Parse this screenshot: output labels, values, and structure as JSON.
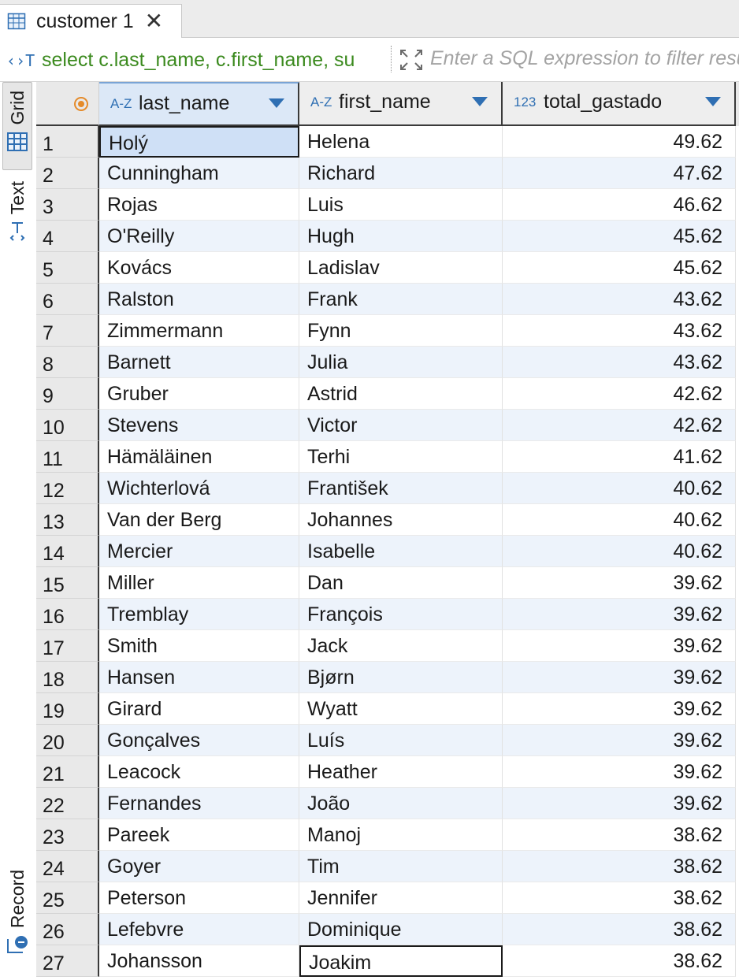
{
  "tab": {
    "title": "customer 1",
    "close": "✕"
  },
  "filter": {
    "sql": "select c.last_name, c.first_name, su",
    "placeholder": "Enter a SQL expression to filter results"
  },
  "sidebar": {
    "grid_label": "Grid",
    "text_label": "Text",
    "record_label": "Record"
  },
  "columns": [
    {
      "type": "A-Z",
      "label": "last_name"
    },
    {
      "type": "A-Z",
      "label": "first_name"
    },
    {
      "type": "123",
      "label": "total_gastado"
    }
  ],
  "rows": [
    {
      "n": "1",
      "last_name": "Holý",
      "first_name": "Helena",
      "total": "49.62"
    },
    {
      "n": "2",
      "last_name": "Cunningham",
      "first_name": "Richard",
      "total": "47.62"
    },
    {
      "n": "3",
      "last_name": "Rojas",
      "first_name": "Luis",
      "total": "46.62"
    },
    {
      "n": "4",
      "last_name": "O'Reilly",
      "first_name": "Hugh",
      "total": "45.62"
    },
    {
      "n": "5",
      "last_name": "Kovács",
      "first_name": "Ladislav",
      "total": "45.62"
    },
    {
      "n": "6",
      "last_name": "Ralston",
      "first_name": "Frank",
      "total": "43.62"
    },
    {
      "n": "7",
      "last_name": "Zimmermann",
      "first_name": "Fynn",
      "total": "43.62"
    },
    {
      "n": "8",
      "last_name": "Barnett",
      "first_name": "Julia",
      "total": "43.62"
    },
    {
      "n": "9",
      "last_name": "Gruber",
      "first_name": "Astrid",
      "total": "42.62"
    },
    {
      "n": "10",
      "last_name": "Stevens",
      "first_name": "Victor",
      "total": "42.62"
    },
    {
      "n": "11",
      "last_name": "Hämäläinen",
      "first_name": "Terhi",
      "total": "41.62"
    },
    {
      "n": "12",
      "last_name": "Wichterlová",
      "first_name": "František",
      "total": "40.62"
    },
    {
      "n": "13",
      "last_name": "Van der Berg",
      "first_name": "Johannes",
      "total": "40.62"
    },
    {
      "n": "14",
      "last_name": "Mercier",
      "first_name": "Isabelle",
      "total": "40.62"
    },
    {
      "n": "15",
      "last_name": "Miller",
      "first_name": "Dan",
      "total": "39.62"
    },
    {
      "n": "16",
      "last_name": "Tremblay",
      "first_name": "François",
      "total": "39.62"
    },
    {
      "n": "17",
      "last_name": "Smith",
      "first_name": "Jack",
      "total": "39.62"
    },
    {
      "n": "18",
      "last_name": "Hansen",
      "first_name": "Bjørn",
      "total": "39.62"
    },
    {
      "n": "19",
      "last_name": "Girard",
      "first_name": "Wyatt",
      "total": "39.62"
    },
    {
      "n": "20",
      "last_name": "Gonçalves",
      "first_name": "Luís",
      "total": "39.62"
    },
    {
      "n": "21",
      "last_name": "Leacock",
      "first_name": "Heather",
      "total": "39.62"
    },
    {
      "n": "22",
      "last_name": "Fernandes",
      "first_name": "João",
      "total": "39.62"
    },
    {
      "n": "23",
      "last_name": "Pareek",
      "first_name": "Manoj",
      "total": "38.62"
    },
    {
      "n": "24",
      "last_name": "Goyer",
      "first_name": "Tim",
      "total": "38.62"
    },
    {
      "n": "25",
      "last_name": "Peterson",
      "first_name": "Jennifer",
      "total": "38.62"
    },
    {
      "n": "26",
      "last_name": "Lefebvre",
      "first_name": "Dominique",
      "total": "38.62"
    },
    {
      "n": "27",
      "last_name": "Johansson",
      "first_name": "Joakim",
      "total": "38.62"
    }
  ],
  "colors": {
    "accent": "#2f6fb3",
    "sql_text": "#3b8a1e",
    "selection": "#cfe0f6",
    "alt_row": "#edf3fb"
  }
}
